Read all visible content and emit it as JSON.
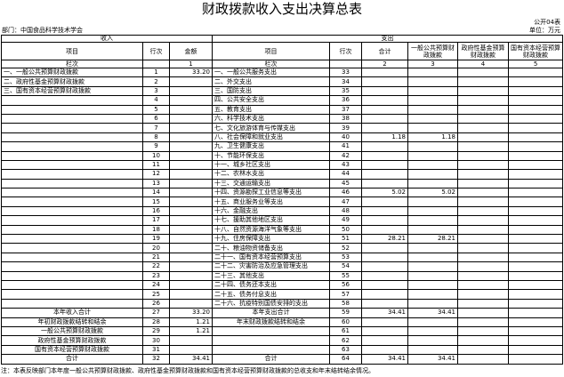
{
  "header": {
    "title": "财政拨款收入支出决算总表",
    "code": "公开04表",
    "department": "部门：中国食品科学技术学会",
    "unit": "单位：万元"
  },
  "table": {
    "groups": [
      "收入",
      "支出"
    ],
    "columns": [
      "项目",
      "行次",
      "金额",
      "项目",
      "行次",
      "合计",
      "一般公共预算财政拨款",
      "政府性基金预算财政拨款",
      "国有资本经营预算财政拨款"
    ],
    "column_numbers": [
      "栏次",
      null,
      1,
      "栏次",
      null,
      2,
      3,
      4,
      5
    ],
    "rows": [
      [
        "一、一般公共预算财政拨款",
        1,
        "33.20",
        "一、一般公共服务支出",
        33,
        null,
        null,
        null,
        null
      ],
      [
        "二、政府性基金预算财政拨款",
        2,
        null,
        "二、外交支出",
        34,
        null,
        null,
        null,
        null
      ],
      [
        "三、国有资本经营预算财政拨款",
        3,
        null,
        "三、国防支出",
        35,
        null,
        null,
        null,
        null
      ],
      [
        null,
        4,
        null,
        "四、公共安全支出",
        36,
        null,
        null,
        null,
        null
      ],
      [
        null,
        5,
        null,
        "五、教育支出",
        37,
        null,
        null,
        null,
        null
      ],
      [
        null,
        6,
        null,
        "六、科学技术支出",
        38,
        null,
        null,
        null,
        null
      ],
      [
        null,
        7,
        null,
        "七、文化旅游体育与传媒支出",
        39,
        null,
        null,
        null,
        null
      ],
      [
        null,
        8,
        null,
        "八、社会保障和就业支出",
        40,
        "1.18",
        "1.18",
        null,
        null
      ],
      [
        null,
        9,
        null,
        "九、卫生健康支出",
        41,
        null,
        null,
        null,
        null
      ],
      [
        null,
        10,
        null,
        "十、节能环保支出",
        42,
        null,
        null,
        null,
        null
      ],
      [
        null,
        11,
        null,
        "十一、城乡社区支出",
        43,
        null,
        null,
        null,
        null
      ],
      [
        null,
        12,
        null,
        "十二、农林水支出",
        44,
        null,
        null,
        null,
        null
      ],
      [
        null,
        13,
        null,
        "十三、交通运输支出",
        45,
        null,
        null,
        null,
        null
      ],
      [
        null,
        14,
        null,
        "十四、资源勘探工业信息等支出",
        46,
        "5.02",
        "5.02",
        null,
        null
      ],
      [
        null,
        15,
        null,
        "十五、商业服务业等支出",
        47,
        null,
        null,
        null,
        null
      ],
      [
        null,
        16,
        null,
        "十六、金融支出",
        48,
        null,
        null,
        null,
        null
      ],
      [
        null,
        17,
        null,
        "十七、援助其他地区支出",
        49,
        null,
        null,
        null,
        null
      ],
      [
        null,
        18,
        null,
        "十八、自然资源海洋气象等支出",
        50,
        null,
        null,
        null,
        null
      ],
      [
        null,
        19,
        null,
        "十九、住房保障支出",
        51,
        "28.21",
        "28.21",
        null,
        null
      ],
      [
        null,
        20,
        null,
        "二十、粮油物资储备支出",
        52,
        null,
        null,
        null,
        null
      ],
      [
        null,
        21,
        null,
        "二十一、国有资本经营预算支出",
        53,
        null,
        null,
        null,
        null
      ],
      [
        null,
        22,
        null,
        "二十二、灾害防治及应急管理支出",
        54,
        null,
        null,
        null,
        null
      ],
      [
        null,
        23,
        null,
        "二十三、其他支出",
        55,
        null,
        null,
        null,
        null
      ],
      [
        null,
        24,
        null,
        "二十四、债务还本支出",
        56,
        null,
        null,
        null,
        null
      ],
      [
        null,
        25,
        null,
        "二十五、债务付息支出",
        57,
        null,
        null,
        null,
        null
      ],
      [
        null,
        26,
        null,
        "二十六、抗疫特别国债安排的支出",
        58,
        null,
        null,
        null,
        null
      ],
      [
        "本年收入合计",
        27,
        "33.20",
        "本年支出合计",
        59,
        "34.41",
        "34.41",
        null,
        null
      ],
      [
        "年初财政拨款结转和结余",
        28,
        "1.21",
        "年末财政拨款结转和结余",
        60,
        null,
        null,
        null,
        null
      ],
      [
        "一般公共预算财政拨款",
        29,
        "1.21",
        null,
        61,
        null,
        null,
        null,
        null
      ],
      [
        "政府性基金预算财政拨款",
        30,
        null,
        null,
        62,
        null,
        null,
        null,
        null
      ],
      [
        "国有资本经营预算财政拨款",
        31,
        null,
        null,
        63,
        null,
        null,
        null,
        null
      ],
      [
        "合计",
        32,
        "34.41",
        "合计",
        64,
        "34.41",
        "34.41",
        null,
        null
      ]
    ]
  },
  "note": "注：本表反映部门本年度一般公共预算财政拨款、政府性基金预算财政拨款和国有资本经营预算财政拨款的总收支和年末结转结余情况。"
}
